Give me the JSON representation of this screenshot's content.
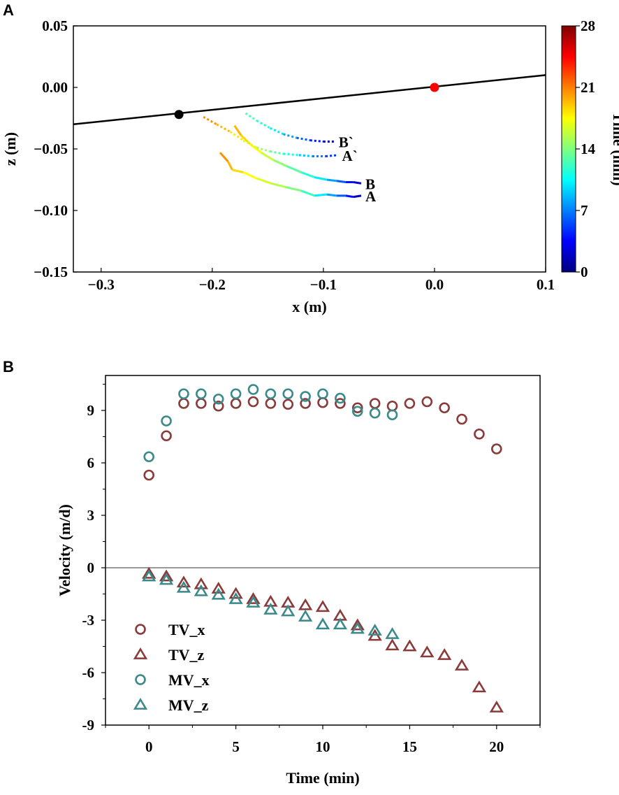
{
  "chart_data": [
    {
      "panel_label": "A",
      "type": "line",
      "xlabel": "x (m)",
      "ylabel": "z (m)",
      "xlim": [
        -0.325,
        0.1
      ],
      "ylim": [
        -0.15,
        0.05
      ],
      "xticks": [
        -0.3,
        -0.2,
        -0.1,
        0.0,
        0.1
      ],
      "xtick_labels": [
        "−0.3",
        "−0.2",
        "−0.1",
        "0.0",
        "0.1"
      ],
      "yticks": [
        0.05,
        0.0,
        -0.05,
        -0.1,
        -0.15
      ],
      "ytick_labels": [
        "0.05",
        "0.00",
        "−0.05",
        "−0.10",
        "−0.15"
      ],
      "colorbar": {
        "label": "Time (min)",
        "min": 0,
        "max": 28,
        "ticks": [
          0,
          7,
          14,
          21,
          28
        ],
        "tick_labels": [
          "0",
          "7",
          "14",
          "21",
          "28"
        ],
        "colormap": [
          "#00007f",
          "#0000ff",
          "#007fff",
          "#00ffff",
          "#7fff7f",
          "#ffff00",
          "#ff7f00",
          "#ff0000",
          "#7f0000"
        ]
      },
      "reference_line": {
        "x": [
          -0.325,
          0.1
        ],
        "y": [
          -0.03,
          0.01
        ],
        "color": "#000000"
      },
      "markers": [
        {
          "name": "black-point",
          "x": -0.23,
          "y": -0.022,
          "color": "#000000"
        },
        {
          "name": "red-point",
          "x": 0.0,
          "y": 0.0,
          "color": "#ff0000"
        }
      ],
      "series": [
        {
          "name": "A",
          "label": "A",
          "style": "solid",
          "x": [
            -0.193,
            -0.186,
            -0.182,
            -0.172,
            -0.16,
            -0.147,
            -0.134,
            -0.12,
            -0.108,
            -0.097,
            -0.088,
            -0.08,
            -0.073,
            -0.066
          ],
          "y": [
            -0.053,
            -0.06,
            -0.067,
            -0.069,
            -0.074,
            -0.078,
            -0.081,
            -0.084,
            -0.088,
            -0.087,
            -0.088,
            -0.088,
            -0.089,
            -0.088
          ],
          "t": [
            21,
            20,
            19,
            18,
            17,
            16,
            15,
            13,
            11,
            9,
            7,
            5,
            3,
            1
          ]
        },
        {
          "name": "B",
          "label": "B",
          "style": "solid",
          "x": [
            -0.18,
            -0.174,
            -0.166,
            -0.156,
            -0.145,
            -0.133,
            -0.12,
            -0.108,
            -0.097,
            -0.088,
            -0.08,
            -0.073,
            -0.066
          ],
          "y": [
            -0.031,
            -0.039,
            -0.046,
            -0.053,
            -0.059,
            -0.064,
            -0.069,
            -0.073,
            -0.075,
            -0.076,
            -0.077,
            -0.077,
            -0.078
          ],
          "t": [
            20,
            19,
            18,
            17,
            15,
            14,
            12,
            11,
            9,
            7,
            5,
            3,
            1
          ]
        },
        {
          "name": "A`",
          "label": "A`",
          "style": "dotted",
          "x": [
            -0.208,
            -0.196,
            -0.184,
            -0.172,
            -0.16,
            -0.148,
            -0.136,
            -0.122,
            -0.11,
            -0.098,
            -0.087
          ],
          "y": [
            -0.024,
            -0.03,
            -0.036,
            -0.043,
            -0.049,
            -0.052,
            -0.054,
            -0.055,
            -0.056,
            -0.056,
            -0.055
          ],
          "t": [
            21,
            20,
            19,
            17,
            16,
            14,
            12,
            10,
            8,
            6,
            4
          ]
        },
        {
          "name": "B`",
          "label": "B`",
          "style": "dotted",
          "x": [
            -0.17,
            -0.16,
            -0.148,
            -0.136,
            -0.124,
            -0.112,
            -0.1,
            -0.09
          ],
          "y": [
            -0.021,
            -0.027,
            -0.033,
            -0.038,
            -0.041,
            -0.043,
            -0.044,
            -0.044
          ],
          "t": [
            13,
            12,
            11,
            9,
            7,
            5,
            3,
            2
          ]
        }
      ]
    },
    {
      "panel_label": "B",
      "type": "scatter",
      "xlabel": "Time (min)",
      "ylabel": "Velocity (m/d)",
      "xlim": [
        -2.5,
        22.5
      ],
      "ylim": [
        -9,
        11
      ],
      "xticks": [
        0,
        5,
        10,
        15,
        20
      ],
      "xtick_labels": [
        "0",
        "5",
        "10",
        "15",
        "20"
      ],
      "yticks": [
        9,
        6,
        3,
        0,
        -3,
        -6,
        -9
      ],
      "ytick_labels": [
        "9",
        "6",
        "3",
        "0",
        "-3",
        "-6",
        "-9"
      ],
      "zero_line": true,
      "series": [
        {
          "name": "TV_x",
          "marker": "circle",
          "color": "#8b3a3a",
          "x": [
            0,
            1,
            2,
            3,
            4,
            5,
            6,
            7,
            8,
            9,
            10,
            11,
            12,
            13,
            14,
            15,
            16,
            17,
            18,
            19,
            20
          ],
          "y": [
            5.3,
            7.55,
            9.4,
            9.4,
            9.25,
            9.4,
            9.5,
            9.4,
            9.35,
            9.4,
            9.45,
            9.4,
            9.15,
            9.4,
            9.25,
            9.4,
            9.5,
            9.15,
            8.5,
            7.65,
            6.8
          ]
        },
        {
          "name": "TV_z",
          "marker": "triangle",
          "color": "#8b3a3a",
          "x": [
            0,
            1,
            2,
            3,
            4,
            5,
            6,
            7,
            8,
            9,
            10,
            11,
            12,
            13,
            14,
            15,
            16,
            17,
            18,
            19,
            20
          ],
          "y": [
            -0.35,
            -0.5,
            -0.85,
            -0.95,
            -1.2,
            -1.5,
            -1.8,
            -1.95,
            -2.0,
            -2.15,
            -2.25,
            -2.75,
            -3.3,
            -3.9,
            -4.45,
            -4.5,
            -4.85,
            -5.0,
            -5.6,
            -6.85,
            -8.0
          ]
        },
        {
          "name": "MV_x",
          "marker": "circle",
          "color": "#3a8a8a",
          "x": [
            0,
            1,
            2,
            3,
            4,
            5,
            6,
            7,
            8,
            9,
            10,
            11,
            12,
            13,
            14
          ],
          "y": [
            6.35,
            8.4,
            9.95,
            9.95,
            9.65,
            9.95,
            10.2,
            9.95,
            9.95,
            9.8,
            9.95,
            9.7,
            8.95,
            8.85,
            8.75
          ]
        },
        {
          "name": "MV_z",
          "marker": "triangle",
          "color": "#3a8a8a",
          "x": [
            0,
            1,
            2,
            3,
            4,
            5,
            6,
            7,
            8,
            9,
            10,
            11,
            12,
            13,
            14
          ],
          "y": [
            -0.5,
            -0.7,
            -1.15,
            -1.35,
            -1.55,
            -1.8,
            -2.0,
            -2.4,
            -2.5,
            -2.8,
            -3.25,
            -3.25,
            -3.5,
            -3.6,
            -3.8
          ]
        }
      ],
      "legend": {
        "placement": "bottom-left",
        "entries": [
          "TV_x",
          "TV_z",
          "MV_x",
          "MV_z"
        ]
      }
    }
  ]
}
